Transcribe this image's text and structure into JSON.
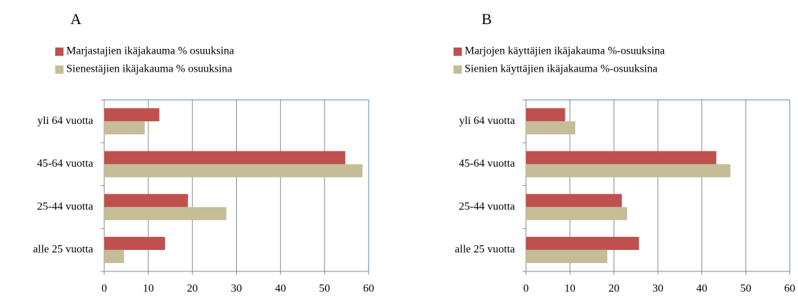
{
  "chart_data": [
    {
      "type": "bar",
      "title": "A",
      "categories": [
        "yli 64 vuotta",
        "45-64 vuotta",
        "25-44 vuotta",
        "alle 25 vuotta"
      ],
      "series": [
        {
          "name": "Marjastajien ikäjakauma % osuuksina",
          "color": "#c0504d",
          "values": [
            12.5,
            54.7,
            19,
            13.8
          ]
        },
        {
          "name": "Sienestäjien ikäjakauma % osuuksina",
          "color": "#c4bd97",
          "values": [
            9.2,
            58.6,
            27.7,
            4.5
          ]
        }
      ],
      "xlim": [
        0,
        60
      ],
      "xticks": [
        0,
        10,
        20,
        30,
        40,
        50,
        60
      ],
      "grid": true
    },
    {
      "type": "bar",
      "title": "B",
      "categories": [
        "yli 64 vuotta",
        "45-64 vuotta",
        "25-44 vuotta",
        "alle 25 vuotta"
      ],
      "series": [
        {
          "name": "Marjojen käyttäjien ikäjakauma %-osuuksina",
          "color": "#c0504d",
          "values": [
            8.9,
            43.3,
            21.8,
            25.7
          ]
        },
        {
          "name": "Sienien käyttäjien ikäjakauma %-osuuksina",
          "color": "#c4bd97",
          "values": [
            11.2,
            46.5,
            23,
            18.5
          ]
        }
      ],
      "xlim": [
        0,
        60
      ],
      "xticks": [
        0,
        10,
        20,
        30,
        40,
        50,
        60
      ],
      "grid": true
    }
  ]
}
